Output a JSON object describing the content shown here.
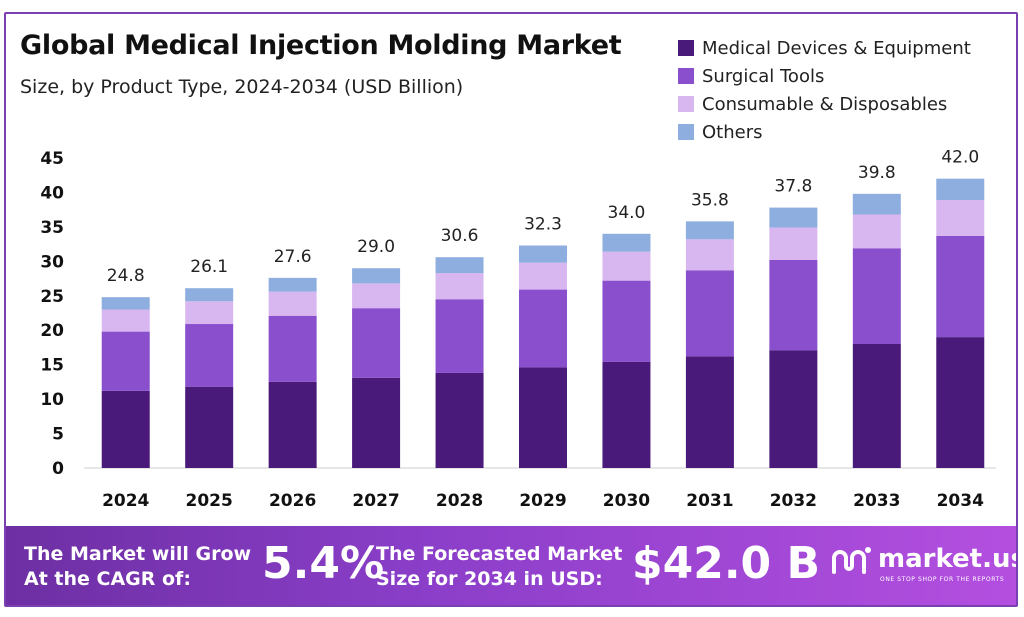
{
  "header": {
    "title": "Global Medical Injection Molding Market",
    "subtitle": "Size, by Product Type, 2024-2034 (USD Billion)"
  },
  "legend": [
    {
      "label": "Medical Devices & Equipment",
      "color": "#4a1a7a"
    },
    {
      "label": "Surgical Tools",
      "color": "#8a4fcc"
    },
    {
      "label": "Consumable & Disposables",
      "color": "#d8b6f0"
    },
    {
      "label": "Others",
      "color": "#8faee0"
    }
  ],
  "chart_data": {
    "type": "bar",
    "stacked": true,
    "categories": [
      "2024",
      "2025",
      "2026",
      "2027",
      "2028",
      "2029",
      "2030",
      "2031",
      "2032",
      "2033",
      "2034"
    ],
    "series": [
      {
        "name": "Medical Devices & Equipment",
        "color": "#4a1a7a",
        "values": [
          11.2,
          11.8,
          12.5,
          13.1,
          13.8,
          14.6,
          15.4,
          16.2,
          17.1,
          18.0,
          19.0
        ]
      },
      {
        "name": "Surgical Tools",
        "color": "#8a4fcc",
        "values": [
          8.6,
          9.1,
          9.6,
          10.1,
          10.7,
          11.3,
          11.8,
          12.5,
          13.1,
          13.9,
          14.7
        ]
      },
      {
        "name": "Consumable & Disposables",
        "color": "#d8b6f0",
        "values": [
          3.2,
          3.3,
          3.5,
          3.6,
          3.8,
          3.9,
          4.2,
          4.5,
          4.7,
          4.9,
          5.2
        ]
      },
      {
        "name": "Others",
        "color": "#8faee0",
        "values": [
          1.8,
          1.9,
          2.0,
          2.2,
          2.3,
          2.5,
          2.6,
          2.6,
          2.9,
          3.0,
          3.1
        ]
      }
    ],
    "totals": [
      "24.8",
      "26.1",
      "27.6",
      "29.0",
      "30.6",
      "32.3",
      "34.0",
      "35.8",
      "37.8",
      "39.8",
      "42.0"
    ],
    "y_ticks": [
      "0",
      "5",
      "10",
      "15",
      "20",
      "25",
      "30",
      "35",
      "40",
      "45"
    ],
    "ylim": [
      0,
      45
    ],
    "grid": false,
    "legend_position": "top-right"
  },
  "banner": {
    "cagr_line1": "The Market will Grow",
    "cagr_line2": "At the CAGR of:",
    "cagr_value": "5.4%",
    "forecast_line1": "The Forecasted Market",
    "forecast_line2": "Size for 2034 in USD:",
    "forecast_value": "$42.0 B",
    "brand_name": "market.us",
    "brand_tagline": "ONE STOP SHOP FOR THE REPORTS"
  }
}
